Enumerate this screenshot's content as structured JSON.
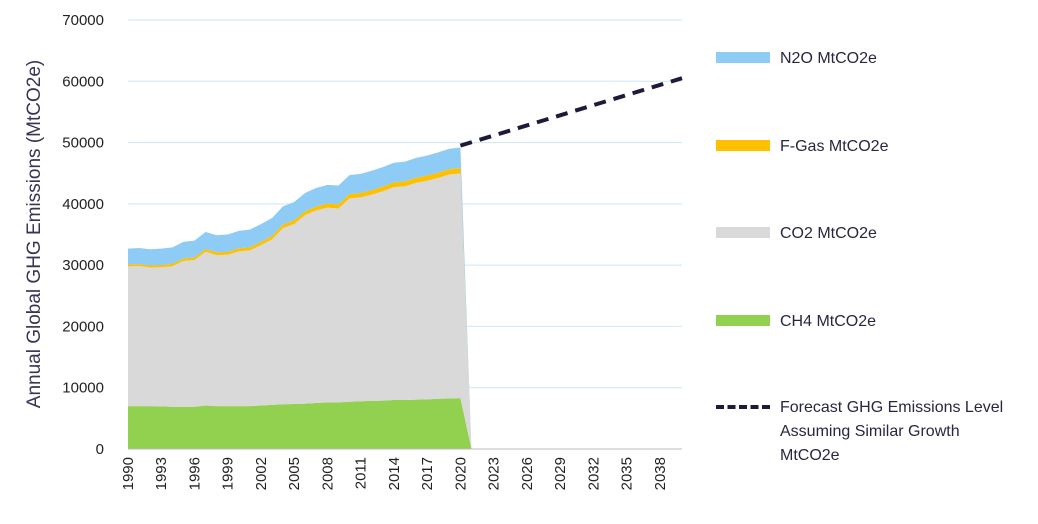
{
  "chart_data": {
    "type": "stacked_area",
    "y_label": "Annual Global GHG Emissions (MtCO2e)",
    "x": [
      1990,
      1991,
      1992,
      1993,
      1994,
      1995,
      1996,
      1997,
      1998,
      1999,
      2000,
      2001,
      2002,
      2003,
      2004,
      2005,
      2006,
      2007,
      2008,
      2009,
      2010,
      2011,
      2012,
      2013,
      2014,
      2015,
      2016,
      2017,
      2018,
      2019,
      2020,
      2021
    ],
    "series": [
      {
        "name": "CH4 MtCO2e",
        "color": "#92d050",
        "values": [
          7000,
          7000,
          7000,
          6950,
          6900,
          6900,
          6900,
          7100,
          7000,
          7000,
          7000,
          7000,
          7100,
          7200,
          7300,
          7350,
          7400,
          7500,
          7600,
          7600,
          7700,
          7800,
          7850,
          7900,
          8000,
          8000,
          8050,
          8100,
          8200,
          8250,
          8300,
          0
        ]
      },
      {
        "name": "CO2 MtCO2e",
        "color": "#d9d9d9",
        "values": [
          22800,
          22850,
          22610,
          22710,
          22920,
          23770,
          23930,
          25080,
          24640,
          24690,
          25250,
          25400,
          26160,
          27010,
          28770,
          29370,
          30780,
          31430,
          31790,
          31640,
          33200,
          33250,
          33660,
          34160,
          34720,
          34870,
          35380,
          35680,
          36040,
          36540,
          36650,
          0
        ]
      },
      {
        "name": "F-Gas MtCO2e",
        "color": "#ffc000",
        "values": [
          300,
          320,
          340,
          360,
          380,
          400,
          420,
          440,
          460,
          480,
          500,
          520,
          540,
          560,
          580,
          600,
          620,
          640,
          660,
          680,
          700,
          720,
          740,
          760,
          780,
          800,
          820,
          840,
          860,
          880,
          900,
          0
        ]
      },
      {
        "name": "N2O MtCO2e",
        "color": "#8ecbf5",
        "values": [
          2600,
          2630,
          2650,
          2680,
          2700,
          2730,
          2750,
          2780,
          2800,
          2830,
          2850,
          2880,
          2900,
          2930,
          2950,
          2980,
          3000,
          3030,
          3050,
          3080,
          3100,
          3130,
          3150,
          3180,
          3200,
          3230,
          3250,
          3280,
          3300,
          3330,
          3350,
          0
        ]
      }
    ],
    "forecast": {
      "name": "Forecast GHG Emissions Level Assuming Similar Growth MtCO2e",
      "color": "#1f1a3a",
      "x": [
        2020,
        2040
      ],
      "values": [
        49500,
        60500
      ]
    },
    "xlim": [
      1990,
      2040
    ],
    "xticks": [
      1990,
      1993,
      1996,
      1999,
      2002,
      2005,
      2008,
      2011,
      2014,
      2017,
      2020,
      2023,
      2026,
      2029,
      2032,
      2035,
      2038
    ],
    "ylim": [
      0,
      70000
    ],
    "yticks": [
      0,
      10000,
      20000,
      30000,
      40000,
      50000,
      60000,
      70000
    ],
    "grid": true
  }
}
